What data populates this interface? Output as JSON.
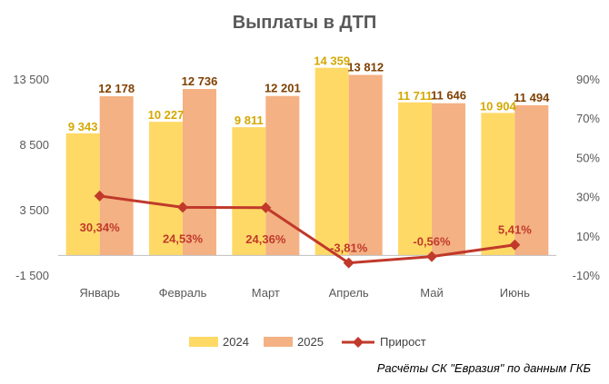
{
  "chart_data": {
    "type": "bar",
    "title": "Выплаты в ДТП",
    "categories": [
      "Январь",
      "Февраль",
      "Март",
      "Апрель",
      "Май",
      "Июнь"
    ],
    "series": [
      {
        "name": "2024",
        "type": "bar",
        "axis": "left",
        "color": "#ffd966",
        "values": [
          9343,
          10227,
          9811,
          14359,
          11711,
          10904
        ],
        "labels": [
          "9 343",
          "10 227",
          "9 811",
          "14 359",
          "11 711",
          "10 904"
        ]
      },
      {
        "name": "2025",
        "type": "bar",
        "axis": "left",
        "color": "#f4b183",
        "values": [
          12178,
          12736,
          12201,
          13812,
          11646,
          11494
        ],
        "labels": [
          "12 178",
          "12 736",
          "12 201",
          "13 812",
          "11 646",
          "11 494"
        ]
      },
      {
        "name": "Прирост",
        "type": "line",
        "axis": "right",
        "color": "#c0392b",
        "values": [
          30.34,
          24.53,
          24.36,
          -3.81,
          -0.56,
          5.41
        ],
        "labels": [
          "30,34%",
          "24,53%",
          "24,36%",
          "-3,81%",
          "-0,56%",
          "5,41%"
        ]
      }
    ],
    "y_left": {
      "range": [
        -1500,
        13500
      ],
      "ticks": [
        13500,
        8500,
        3500,
        -1500
      ],
      "tick_labels": [
        "13 500",
        "8 500",
        "3 500",
        "-1 500"
      ]
    },
    "y_right": {
      "range": [
        -10,
        90
      ],
      "ticks": [
        90,
        70,
        50,
        30,
        10,
        -10
      ],
      "tick_labels": [
        "90%",
        "70%",
        "50%",
        "30%",
        "10%",
        "-10%"
      ]
    },
    "legend": {
      "position": "bottom",
      "entries": [
        "2024",
        "2025",
        "Прирост"
      ]
    },
    "grid": false
  },
  "source_note": "Расчёты СК \"Евразия\" по данным ГКБ"
}
